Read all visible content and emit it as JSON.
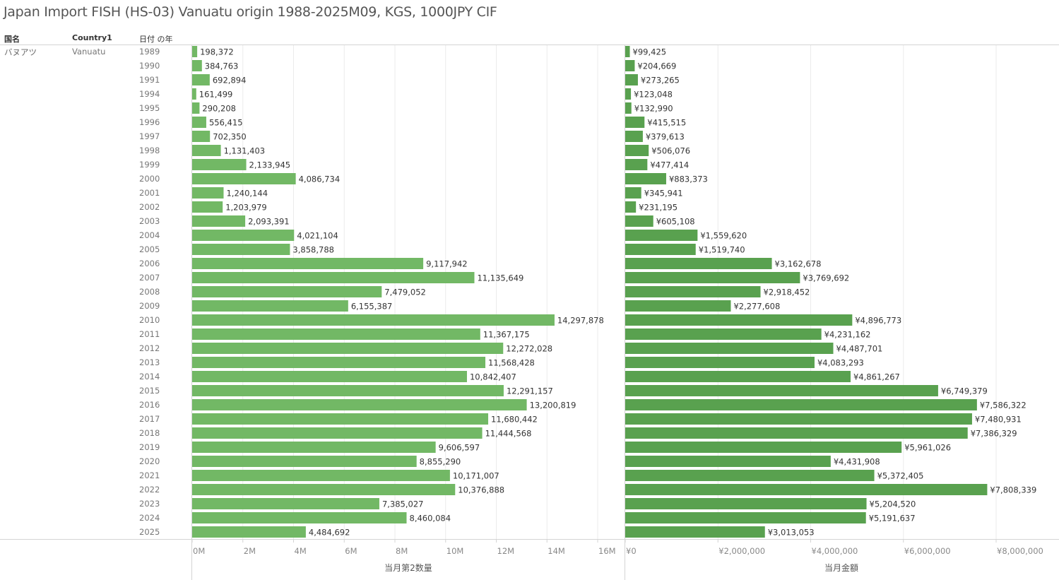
{
  "title": "Japan Import FISH (HS-03) Vanuatu origin 1988-2025M09, KGS, 1000JPY CIF",
  "headers": {
    "country_jp": "国名",
    "country_en": "Country1",
    "year": "日付 の年"
  },
  "row_dims": {
    "country_jp": "バヌアツ",
    "country_en": "Vanuatu"
  },
  "colors": {
    "quantity_bar": "#72B865",
    "value_bar": "#59A14F",
    "grid": "#ebebeb",
    "axis": "#d4d4d4"
  },
  "chart_data": [
    {
      "type": "bar",
      "orientation": "horizontal",
      "title": "",
      "xlabel": "当月第2数量",
      "ylabel": "日付 の年",
      "xlim": [
        0,
        16000000
      ],
      "x_ticks": [
        0,
        2000000,
        4000000,
        6000000,
        8000000,
        10000000,
        12000000,
        14000000,
        16000000
      ],
      "x_tick_labels": [
        "0M",
        "2M",
        "4M",
        "6M",
        "8M",
        "10M",
        "12M",
        "14M",
        "16M"
      ],
      "grid": true,
      "categories": [
        "1989",
        "1990",
        "1991",
        "1994",
        "1995",
        "1996",
        "1997",
        "1998",
        "1999",
        "2000",
        "2001",
        "2002",
        "2003",
        "2004",
        "2005",
        "2006",
        "2007",
        "2008",
        "2009",
        "2010",
        "2011",
        "2012",
        "2013",
        "2014",
        "2015",
        "2016",
        "2017",
        "2018",
        "2019",
        "2020",
        "2021",
        "2022",
        "2023",
        "2024",
        "2025"
      ],
      "values": [
        198372,
        384763,
        692894,
        161499,
        290208,
        556415,
        702350,
        1131403,
        2133945,
        4086734,
        1240144,
        1203979,
        2093391,
        4021104,
        3858788,
        9117942,
        11135649,
        7479052,
        6155387,
        14297878,
        11367175,
        12272028,
        11568428,
        10842407,
        12291157,
        13200819,
        11680442,
        11444568,
        9606597,
        8855290,
        10171007,
        10376888,
        7385027,
        8460084,
        4484692
      ],
      "labels": [
        "198,372",
        "384,763",
        "692,894",
        "161,499",
        "290,208",
        "556,415",
        "702,350",
        "1,131,403",
        "2,133,945",
        "4,086,734",
        "1,240,144",
        "1,203,979",
        "2,093,391",
        "4,021,104",
        "3,858,788",
        "9,117,942",
        "11,135,649",
        "7,479,052",
        "6,155,387",
        "14,297,878",
        "11,367,175",
        "12,272,028",
        "11,568,428",
        "10,842,407",
        "12,291,157",
        "13,200,819",
        "11,680,442",
        "11,444,568",
        "9,606,597",
        "8,855,290",
        "10,171,007",
        "10,376,888",
        "7,385,027",
        "8,460,084",
        "4,484,692"
      ]
    },
    {
      "type": "bar",
      "orientation": "horizontal",
      "title": "",
      "xlabel": "当月金額",
      "ylabel": "日付 の年",
      "xlim": [
        0,
        9200000
      ],
      "x_ticks": [
        0,
        2000000,
        4000000,
        6000000,
        8000000
      ],
      "x_tick_labels": [
        "¥0",
        "¥2,000,000",
        "¥4,000,000",
        "¥6,000,000",
        "¥8,000,000"
      ],
      "grid": true,
      "categories": [
        "1989",
        "1990",
        "1991",
        "1994",
        "1995",
        "1996",
        "1997",
        "1998",
        "1999",
        "2000",
        "2001",
        "2002",
        "2003",
        "2004",
        "2005",
        "2006",
        "2007",
        "2008",
        "2009",
        "2010",
        "2011",
        "2012",
        "2013",
        "2014",
        "2015",
        "2016",
        "2017",
        "2018",
        "2019",
        "2020",
        "2021",
        "2022",
        "2023",
        "2024",
        "2025"
      ],
      "values": [
        99425,
        204669,
        273265,
        123048,
        132990,
        415515,
        379613,
        506076,
        477414,
        883373,
        345941,
        231195,
        605108,
        1559620,
        1519740,
        3162678,
        3769692,
        2918452,
        2277608,
        4896773,
        4231162,
        4487701,
        4083293,
        4861267,
        6749379,
        7586322,
        7480931,
        7386329,
        5961026,
        4431908,
        5372405,
        7808339,
        5204520,
        5191637,
        3013053
      ],
      "labels": [
        "¥99,425",
        "¥204,669",
        "¥273,265",
        "¥123,048",
        "¥132,990",
        "¥415,515",
        "¥379,613",
        "¥506,076",
        "¥477,414",
        "¥883,373",
        "¥345,941",
        "¥231,195",
        "¥605,108",
        "¥1,559,620",
        "¥1,519,740",
        "¥3,162,678",
        "¥3,769,692",
        "¥2,918,452",
        "¥2,277,608",
        "¥4,896,773",
        "¥4,231,162",
        "¥4,487,701",
        "¥4,083,293",
        "¥4,861,267",
        "¥6,749,379",
        "¥7,586,322",
        "¥7,480,931",
        "¥7,386,329",
        "¥5,961,026",
        "¥4,431,908",
        "¥5,372,405",
        "¥7,808,339",
        "¥5,204,520",
        "¥5,191,637",
        "¥3,013,053"
      ]
    }
  ]
}
